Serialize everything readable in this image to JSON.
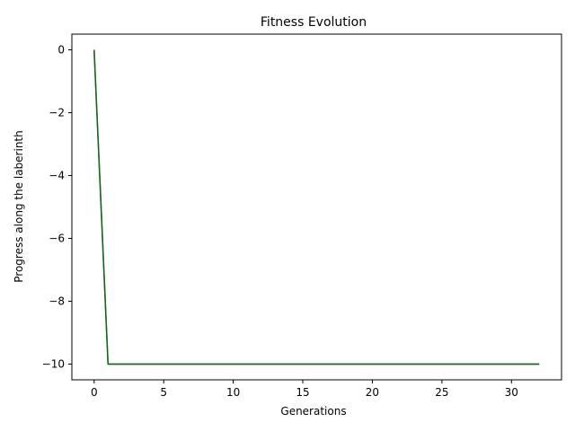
{
  "chart_data": {
    "type": "line",
    "title": "Fitness Evolution",
    "xlabel": "Generations",
    "ylabel": "Progress along the laberinth",
    "xlim": [
      -1.6,
      33.6
    ],
    "ylim": [
      -10.5,
      0.5
    ],
    "xticks": [
      0,
      5,
      10,
      15,
      20,
      25,
      30
    ],
    "yticks": [
      0,
      -2,
      -4,
      -6,
      -8,
      -10
    ],
    "xtick_labels": [
      "0",
      "5",
      "10",
      "15",
      "20",
      "25",
      "30"
    ],
    "ytick_labels": [
      "0",
      "−2",
      "−4",
      "−6",
      "−8",
      "−10"
    ],
    "grid": false,
    "series": [
      {
        "x": [
          0,
          1,
          32
        ],
        "y": [
          0,
          -10,
          -10
        ],
        "color": "#2ca02c"
      },
      {
        "x": [
          0,
          1,
          32
        ],
        "y": [
          0,
          -10,
          -10
        ],
        "color": "#1b5e20"
      }
    ]
  }
}
